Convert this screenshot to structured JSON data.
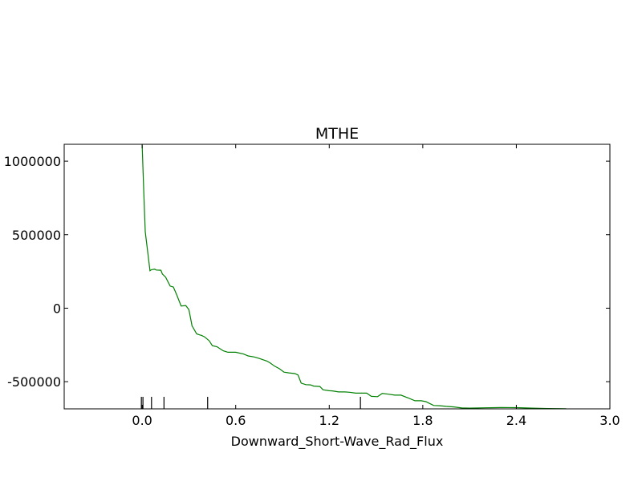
{
  "chart_data": {
    "type": "line",
    "title": "MTHE",
    "xlabel": "Downward_Short-Wave_Rad_Flux",
    "ylabel": "",
    "xlim": [
      -0.5,
      3.0
    ],
    "ylim": [
      -685000,
      1115000
    ],
    "grid": false,
    "xticks": [
      0.0,
      0.6,
      1.2,
      1.8,
      2.4,
      3.0
    ],
    "xtick_labels": [
      "0.0",
      "0.6",
      "1.2",
      "1.8",
      "2.4",
      "3.0"
    ],
    "yticks": [
      1000000,
      500000,
      0,
      -500000
    ],
    "ytick_labels": [
      "1000000",
      "500000",
      "0",
      "-500000"
    ],
    "series": [
      {
        "color": "#008000",
        "x": [
          0.0,
          0.01,
          0.02,
          0.03,
          0.05,
          0.06,
          0.08,
          0.09,
          0.12,
          0.13,
          0.15,
          0.18,
          0.2,
          0.22,
          0.25,
          0.28,
          0.3,
          0.32,
          0.35,
          0.37,
          0.38,
          0.4,
          0.43,
          0.45,
          0.48,
          0.52,
          0.55,
          0.58,
          0.6,
          0.65,
          0.68,
          0.72,
          0.75,
          0.8,
          0.82,
          0.85,
          0.88,
          0.91,
          0.94,
          0.98,
          1.0,
          1.02,
          1.05,
          1.08,
          1.1,
          1.14,
          1.16,
          1.2,
          1.22,
          1.26,
          1.3,
          1.33,
          1.37,
          1.41,
          1.44,
          1.47,
          1.51,
          1.54,
          1.58,
          1.62,
          1.66,
          1.7,
          1.75,
          1.79,
          1.82,
          1.84,
          1.87,
          1.91,
          1.95,
          2.0,
          2.05,
          2.1,
          2.2,
          2.3,
          2.4,
          2.5,
          2.6,
          2.72
        ],
        "y": [
          1115000,
          800000,
          520000,
          430000,
          255000,
          262000,
          265000,
          260000,
          258000,
          232000,
          212000,
          150000,
          144000,
          95000,
          15000,
          18000,
          -10000,
          -120000,
          -175000,
          -182000,
          -185000,
          -195000,
          -222000,
          -255000,
          -262000,
          -290000,
          -300000,
          -300000,
          -300000,
          -312000,
          -325000,
          -332000,
          -342000,
          -360000,
          -372000,
          -395000,
          -412000,
          -435000,
          -440000,
          -445000,
          -455000,
          -510000,
          -520000,
          -522000,
          -530000,
          -533000,
          -555000,
          -562000,
          -563000,
          -570000,
          -570000,
          -572000,
          -578000,
          -578000,
          -578000,
          -600000,
          -602000,
          -580000,
          -585000,
          -592000,
          -592000,
          -608000,
          -630000,
          -630000,
          -636000,
          -646000,
          -662000,
          -664000,
          -668000,
          -672000,
          -679000,
          -680000,
          -678000,
          -676000,
          -677000,
          -680000,
          -683000,
          -684000
        ]
      }
    ],
    "rug_x": [
      -0.005,
      0.005,
      0.06,
      0.14,
      0.42,
      1.4
    ]
  }
}
